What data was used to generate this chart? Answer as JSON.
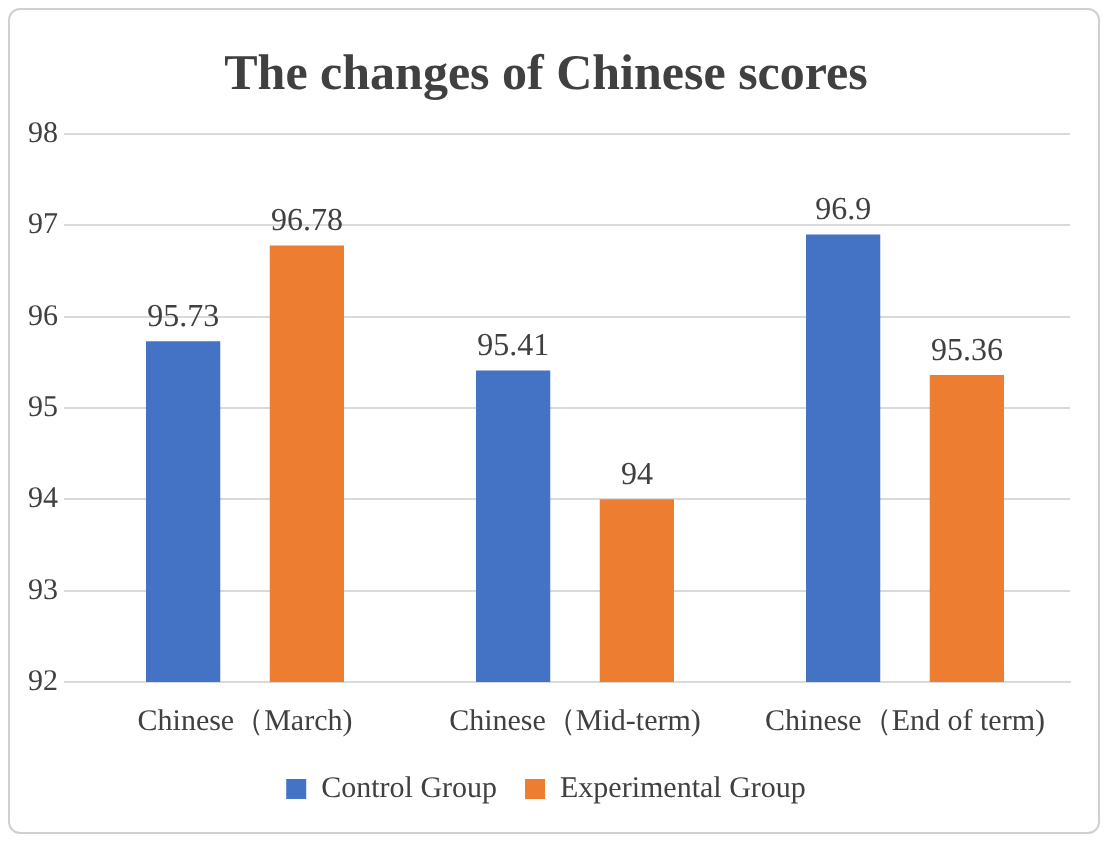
{
  "chart_data": {
    "type": "bar",
    "title": "The changes of Chinese scores",
    "categories": [
      "Chinese（March)",
      "Chinese（Mid-term)",
      "Chinese（End of term)"
    ],
    "series": [
      {
        "name": "Control Group",
        "color": "#4472c4",
        "values": [
          95.73,
          95.41,
          96.9
        ]
      },
      {
        "name": "Experimental Group",
        "color": "#ed7d31",
        "values": [
          96.78,
          94,
          95.36
        ]
      }
    ],
    "ylim": [
      92,
      98
    ],
    "yticks": [
      92,
      93,
      94,
      95,
      96,
      97,
      98
    ],
    "grid": "y",
    "legend": "bottom",
    "data_labels": true
  }
}
